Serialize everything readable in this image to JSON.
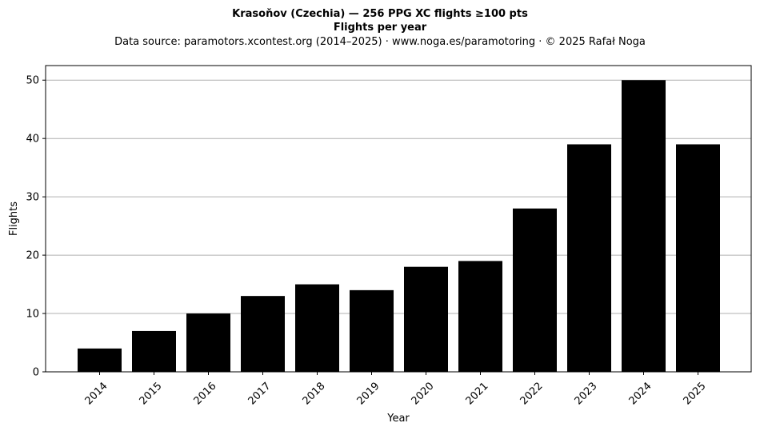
{
  "chart_data": {
    "type": "bar",
    "title_line1": "Krasoňov (Czechia)  —  256 PPG XC flights ≥100 pts",
    "title_line2": "Flights per year",
    "subtitle": "Data source: paramotors.xcontest.org (2014–2025)  ·  www.noga.es/paramotoring  ·  © 2025 Rafał Noga",
    "xlabel": "Year",
    "ylabel": "Flights",
    "categories": [
      "2014",
      "2015",
      "2016",
      "2017",
      "2018",
      "2019",
      "2020",
      "2021",
      "2022",
      "2023",
      "2024",
      "2025"
    ],
    "values": [
      4,
      7,
      10,
      13,
      15,
      14,
      18,
      19,
      28,
      39,
      50,
      39
    ],
    "ylim": [
      0,
      52.5
    ],
    "yticks": [
      "0",
      "10",
      "20",
      "30",
      "40",
      "50"
    ],
    "grid": "horizontal",
    "bar_color": "#000000",
    "grid_color": "#b0b0b0"
  }
}
